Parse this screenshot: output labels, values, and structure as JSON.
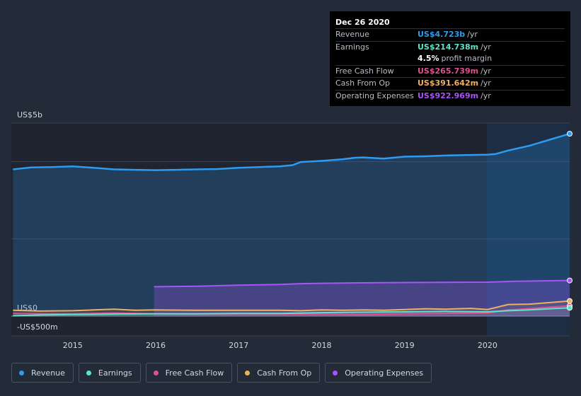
{
  "tooltip": {
    "date": "Dec 26 2020",
    "rows": [
      {
        "label": "Revenue",
        "value": "US$4.723b",
        "unit": "/yr",
        "color": "#2d9cf0"
      },
      {
        "label": "Earnings",
        "value": "US$214.738m",
        "unit": "/yr",
        "color": "#5fe3c8"
      },
      {
        "label": "",
        "value": "4.5%",
        "unit": "profit margin",
        "color": "#ffffff"
      },
      {
        "label": "Free Cash Flow",
        "value": "US$265.739m",
        "unit": "/yr",
        "color": "#e0508f"
      },
      {
        "label": "Cash From Op",
        "value": "US$391.642m",
        "unit": "/yr",
        "color": "#f0b060"
      },
      {
        "label": "Operating Expenses",
        "value": "US$922.969m",
        "unit": "/yr",
        "color": "#a855f7"
      }
    ]
  },
  "legend": [
    {
      "label": "Revenue",
      "color": "#2d9cf0"
    },
    {
      "label": "Earnings",
      "color": "#5fe3c8"
    },
    {
      "label": "Free Cash Flow",
      "color": "#e0508f"
    },
    {
      "label": "Cash From Op",
      "color": "#f0b060"
    },
    {
      "label": "Operating Expenses",
      "color": "#a855f7"
    }
  ],
  "chart_data": {
    "type": "area",
    "title": "",
    "xlabel": "",
    "ylabel": "",
    "y_axis_labels": [
      "US$5b",
      "US$0",
      "-US$500m"
    ],
    "x_ticks": [
      "2015",
      "2016",
      "2017",
      "2018",
      "2019",
      "2020"
    ],
    "xlim": [
      2014.26,
      2020.99
    ],
    "ylim": [
      -500,
      5000
    ],
    "highlight_start": 2019.99,
    "series": [
      {
        "name": "Revenue",
        "color": "#2d9cf0",
        "x": [
          2014.28,
          2014.5,
          2014.75,
          2015.0,
          2015.25,
          2015.5,
          2015.75,
          2016.0,
          2016.25,
          2016.5,
          2016.75,
          2017.0,
          2017.25,
          2017.5,
          2017.65,
          2017.75,
          2018.0,
          2018.25,
          2018.4,
          2018.5,
          2018.75,
          2019.0,
          2019.25,
          2019.5,
          2019.75,
          2020.0,
          2020.1,
          2020.25,
          2020.5,
          2020.75,
          2020.99
        ],
        "values": [
          3800,
          3850,
          3860,
          3880,
          3840,
          3800,
          3790,
          3780,
          3790,
          3800,
          3810,
          3840,
          3860,
          3880,
          3910,
          3990,
          4020,
          4060,
          4100,
          4110,
          4080,
          4130,
          4140,
          4160,
          4170,
          4180,
          4200,
          4290,
          4410,
          4570,
          4723
        ]
      },
      {
        "name": "Operating Expenses",
        "color": "#a855f7",
        "x": [
          2015.98,
          2016.5,
          2017.0,
          2017.5,
          2017.75,
          2018.0,
          2018.5,
          2019.0,
          2019.5,
          2020.0,
          2020.3,
          2020.6,
          2020.99
        ],
        "values": [
          760,
          775,
          800,
          820,
          840,
          850,
          860,
          870,
          875,
          880,
          900,
          910,
          923
        ]
      },
      {
        "name": "Cash From Op",
        "color": "#f0b060",
        "x": [
          2014.28,
          2014.6,
          2015.0,
          2015.25,
          2015.5,
          2015.75,
          2016.0,
          2016.5,
          2017.0,
          2017.5,
          2017.75,
          2018.0,
          2018.25,
          2018.5,
          2018.75,
          2019.0,
          2019.25,
          2019.5,
          2019.8,
          2020.0,
          2020.25,
          2020.5,
          2020.75,
          2020.99
        ],
        "values": [
          150,
          130,
          140,
          160,
          180,
          150,
          160,
          150,
          150,
          150,
          140,
          160,
          150,
          160,
          150,
          170,
          190,
          180,
          200,
          170,
          300,
          310,
          350,
          392
        ]
      },
      {
        "name": "Free Cash Flow",
        "color": "#e0508f",
        "x": [
          2014.28,
          2015.0,
          2015.5,
          2016.0,
          2016.5,
          2017.0,
          2017.5,
          2018.0,
          2018.5,
          2019.0,
          2019.5,
          2020.0,
          2020.25,
          2020.5,
          2020.75,
          2020.99
        ],
        "values": [
          70,
          60,
          80,
          60,
          50,
          60,
          55,
          50,
          40,
          60,
          70,
          80,
          160,
          190,
          230,
          266
        ]
      },
      {
        "name": "Earnings",
        "color": "#5fe3c8",
        "x": [
          2014.28,
          2014.6,
          2014.98,
          2015.5,
          2016.0,
          2016.5,
          2017.0,
          2017.5,
          2018.0,
          2018.5,
          2019.0,
          2019.5,
          2020.0,
          2020.25,
          2020.5,
          2020.75,
          2020.99
        ],
        "values": [
          10,
          30,
          40,
          50,
          60,
          60,
          70,
          70,
          90,
          100,
          110,
          120,
          110,
          140,
          160,
          190,
          215
        ]
      }
    ]
  }
}
